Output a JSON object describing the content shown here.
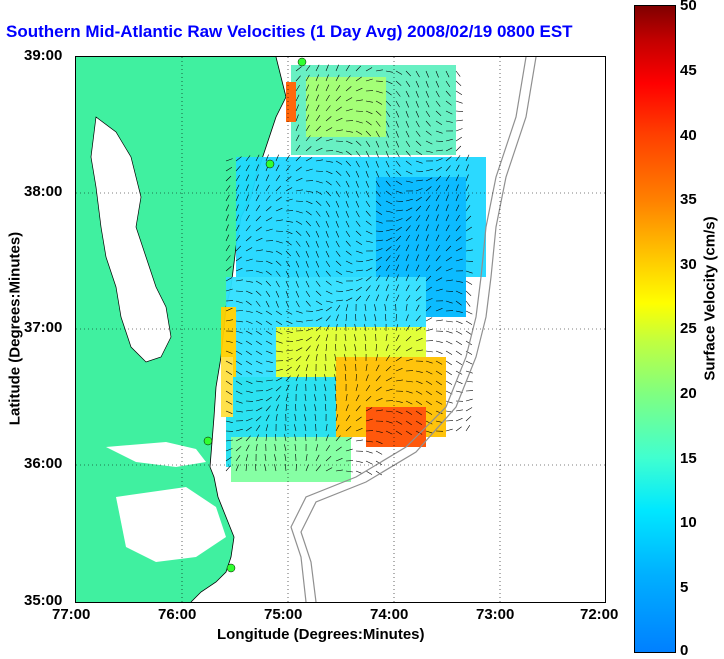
{
  "title": "Southern Mid-Atlantic Raw Velocities (1 Day Avg) 2008/02/19 0800 EST",
  "axes": {
    "x_title": "Longitude (Degrees:Minutes)",
    "y_title": "Latitude (Degrees:Minutes)",
    "x_ticks": [
      "77:00",
      "76:00",
      "75:00",
      "74:00",
      "73:00",
      "72:00"
    ],
    "y_ticks": [
      "39:00",
      "38:00",
      "37:00",
      "36:00",
      "35:00"
    ]
  },
  "colorbar": {
    "title": "Surface Velocity (cm/s)",
    "ticks": [
      "50",
      "45",
      "40",
      "35",
      "30",
      "25",
      "20",
      "15",
      "10",
      "5",
      "0"
    ],
    "range": [
      0,
      50
    ]
  },
  "colors": {
    "land": "#40f0a0",
    "title": "#0000ff",
    "bathymetry": "#909090",
    "station": "#30ff30"
  },
  "map": {
    "lon_range": [
      -77,
      -72
    ],
    "lat_range": [
      35,
      39
    ],
    "grid": "dotted"
  }
}
